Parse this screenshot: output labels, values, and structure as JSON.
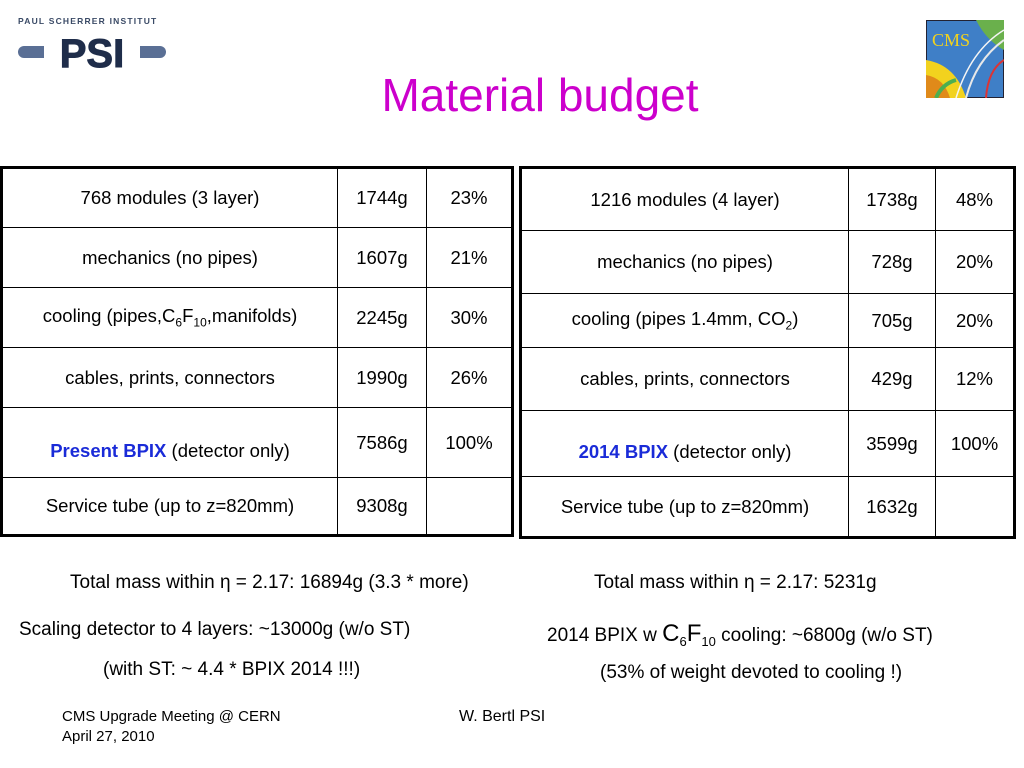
{
  "header": {
    "institute": "PAUL SCHERRER INSTITUT",
    "psi_logo_text": "PSI",
    "cms_logo_text": "CMS",
    "title": "Material budget"
  },
  "left_table": {
    "rows": [
      {
        "label": "768 modules (3 layer)",
        "mass": "1744g",
        "pct": "23%"
      },
      {
        "label": "mechanics (no pipes)",
        "mass": "1607g",
        "pct": "21%"
      },
      {
        "label_pre": "cooling (pipes,C",
        "sub1": "6",
        "label_mid": "F",
        "sub2": "10",
        "label_post": ",manifolds)",
        "mass": "2245g",
        "pct": "30%"
      },
      {
        "label": "cables, prints, connectors",
        "mass": "1990g",
        "pct": "26%"
      },
      {
        "label_bold": "Present BPIX",
        "label_rest": " (detector only)",
        "mass": "7586g",
        "pct": "100%"
      },
      {
        "label": "Service tube (up to z=820mm)",
        "mass": "9308g",
        "pct": ""
      }
    ]
  },
  "right_table": {
    "rows": [
      {
        "label": "1216 modules (4 layer)",
        "mass": "1738g",
        "pct": "48%"
      },
      {
        "label": "mechanics (no pipes)",
        "mass": "728g",
        "pct": "20%"
      },
      {
        "label_pre": "cooling (pipes 1.4mm, CO",
        "sub1": "2",
        "label_post": ")",
        "mass": "705g",
        "pct": "20%"
      },
      {
        "label": "cables, prints, connectors",
        "mass": "429g",
        "pct": "12%"
      },
      {
        "label_bold": "2014 BPIX",
        "label_rest": " (detector only)",
        "mass": "3599g",
        "pct": "100%"
      },
      {
        "label": "Service tube (up to z=820mm)",
        "mass": "1632g",
        "pct": ""
      }
    ]
  },
  "notes": {
    "total_left": "Total mass within η = 2.17:    16894g (3.3 * more)",
    "total_right": "Total mass within η = 2.17:     5231g",
    "scaling": "Scaling detector to 4 layers: ~13000g  (w/o ST)",
    "with_st": "(with ST: ~ 4.4 * BPIX 2014 !!!)",
    "bpix_pre": "2014 BPIX w ",
    "bpix_c": "C",
    "bpix_sub1": "6",
    "bpix_f": "F",
    "bpix_sub2": "10",
    "bpix_post": " cooling: ~6800g  (w/o ST)",
    "weight": "(53% of weight devoted to cooling !)"
  },
  "footer": {
    "meeting": "CMS Upgrade Meeting @ CERN",
    "date": "April 27, 2010",
    "author": "W. Bertl PSI"
  }
}
